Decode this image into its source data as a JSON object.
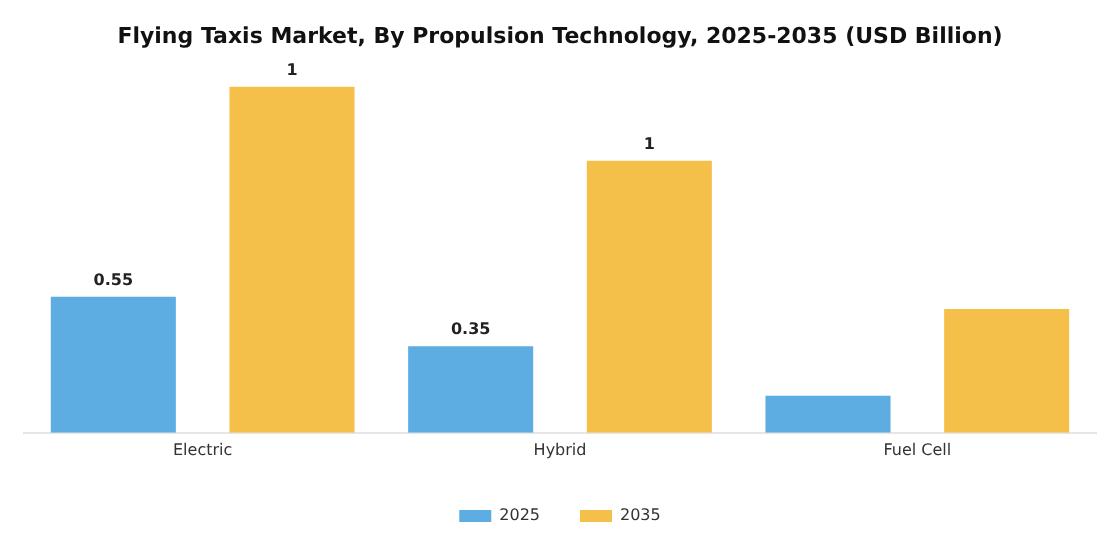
{
  "chart_data": {
    "type": "bar",
    "title": "Flying Taxis Market, By Propulsion Technology, 2025-2035 (USD Billion)",
    "categories": [
      "Electric",
      "Hybrid",
      "Fuel Cell"
    ],
    "series": [
      {
        "name": "2025",
        "color": "#5dade2",
        "values": [
          0.55,
          0.35,
          0.15
        ],
        "value_labels": [
          "0.55",
          "0.35",
          null
        ]
      },
      {
        "name": "2035",
        "color": "#f5c04a",
        "values": [
          1.4,
          1.1,
          0.5
        ],
        "value_labels": [
          "1",
          "1",
          null
        ]
      }
    ],
    "legend": "bottom",
    "grid": false
  }
}
